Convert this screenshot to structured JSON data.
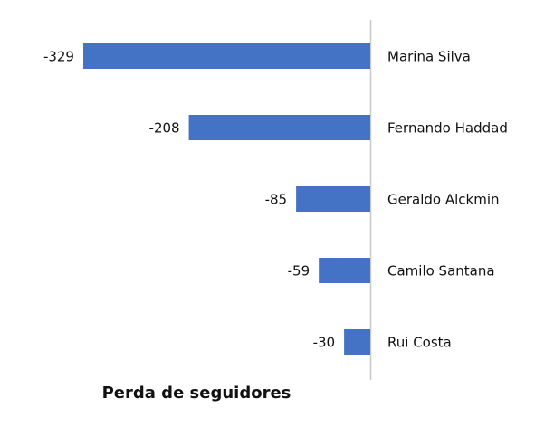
{
  "chart_data": {
    "type": "bar",
    "orientation": "horizontal",
    "categories": [
      "Marina Silva",
      "Fernando Haddad",
      "Geraldo Alckmin",
      "Camilo Santana",
      "Rui Costa"
    ],
    "values": [
      -329,
      -208,
      -85,
      -59,
      -30
    ],
    "color": "#4472c4",
    "xlabel": "Perda de seguidores",
    "xlim": [
      -340,
      0
    ]
  }
}
